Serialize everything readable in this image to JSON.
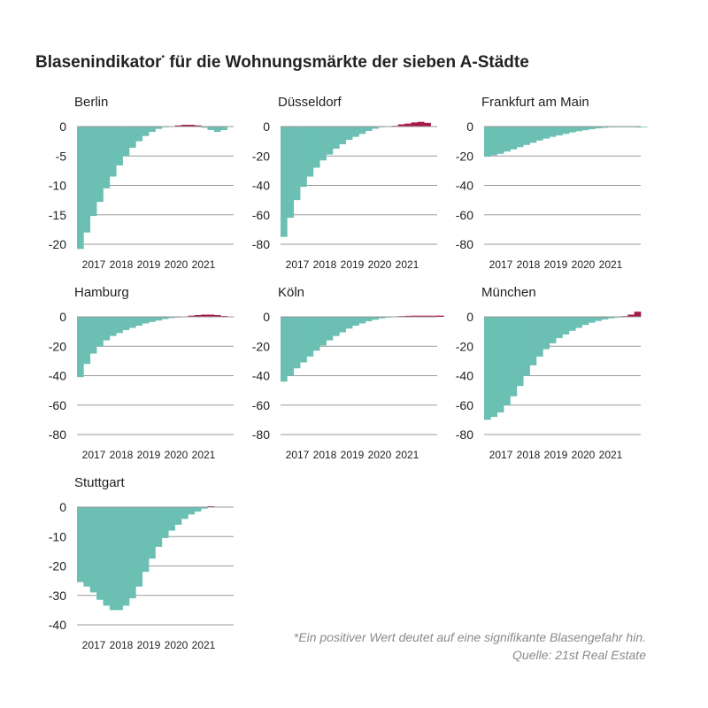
{
  "title": "Blasenindikator",
  "title_sup": "*",
  "title_rest": " für die Wohnungsmärkte der sieben A-Städte",
  "footnote": {
    "line1": "*Ein positiver Wert deutet auf eine signifikante Blasengefahr hin.",
    "line2": "Quelle: 21st Real Estate"
  },
  "colors": {
    "negative": "#6bbfb3",
    "positive": "#a8174a",
    "gridline": "#9a9a9a",
    "text": "#222222"
  },
  "chart_data": [
    {
      "type": "bar",
      "title": "Berlin",
      "x_tick_labels": [
        "2017",
        "2018",
        "2019",
        "2020",
        "2021"
      ],
      "yticks": [
        0,
        -5,
        -10,
        -15,
        -20
      ],
      "ylim": [
        -21,
        1
      ],
      "values": [
        -20.8,
        -18,
        -15.2,
        -12.8,
        -10.5,
        -8.5,
        -6.6,
        -5,
        -3.6,
        -2.5,
        -1.6,
        -0.9,
        -0.4,
        -0.1,
        0,
        0.2,
        0.3,
        0.3,
        0.2,
        -0.2,
        -0.6,
        -0.9,
        -0.6,
        0
      ]
    },
    {
      "type": "bar",
      "title": "Düsseldorf",
      "x_tick_labels": [
        "2017",
        "2018",
        "2019",
        "2020",
        "2021"
      ],
      "yticks": [
        0,
        -20,
        -40,
        -60,
        -80
      ],
      "ylim": [
        -82,
        5
      ],
      "values": [
        -75,
        -62,
        -50,
        -41,
        -34,
        -28,
        -23,
        -19,
        -15,
        -12,
        -9,
        -7,
        -5,
        -3,
        -1.5,
        -0.5,
        0,
        0.5,
        1.5,
        2,
        2.8,
        3.2,
        2.5
      ]
    },
    {
      "type": "bar",
      "title": "Frankfurt am Main",
      "x_tick_labels": [
        "2017",
        "2018",
        "2019",
        "2020",
        "2021"
      ],
      "yticks": [
        0,
        -20,
        -40,
        -60,
        -80
      ],
      "ylim": [
        -82,
        2
      ],
      "values": [
        -20.5,
        -19.5,
        -18.5,
        -17,
        -15.5,
        -14,
        -12.5,
        -11,
        -9.5,
        -8.2,
        -7,
        -6,
        -5,
        -4,
        -3.2,
        -2.5,
        -1.8,
        -1.2,
        -0.8,
        -0.5,
        -0.3,
        -0.2,
        -0.2,
        -0.6,
        -0.3
      ]
    },
    {
      "type": "bar",
      "title": "Hamburg",
      "x_tick_labels": [
        "2017",
        "2018",
        "2019",
        "2020",
        "2021"
      ],
      "yticks": [
        0,
        -20,
        -40,
        -60,
        -80
      ],
      "ylim": [
        -82,
        2
      ],
      "values": [
        -41,
        -32,
        -25,
        -20,
        -16,
        -13,
        -11,
        -9,
        -7.5,
        -6,
        -4.5,
        -3.5,
        -2.5,
        -1.5,
        -0.8,
        -0.3,
        0.3,
        0.8,
        1.2,
        1.5,
        1.5,
        1.2,
        0.6,
        0.2
      ]
    },
    {
      "type": "bar",
      "title": "Köln",
      "x_tick_labels": [
        "2017",
        "2018",
        "2019",
        "2020",
        "2021"
      ],
      "yticks": [
        0,
        -20,
        -40,
        -60,
        -80
      ],
      "ylim": [
        -82,
        2
      ],
      "values": [
        -44,
        -40,
        -35,
        -31,
        -27,
        -23,
        -19.5,
        -16,
        -13,
        -10.5,
        -8,
        -6,
        -4.5,
        -3,
        -2,
        -1,
        -0.3,
        0.2,
        0.5,
        0.7,
        0.8,
        0.8,
        0.8,
        0.8,
        0.8
      ]
    },
    {
      "type": "bar",
      "title": "München",
      "x_tick_labels": [
        "2017",
        "2018",
        "2019",
        "2020",
        "2021"
      ],
      "yticks": [
        0,
        -20,
        -40,
        -60,
        -80
      ],
      "ylim": [
        -82,
        6
      ],
      "values": [
        -70,
        -68,
        -65,
        -60,
        -54,
        -47,
        -40,
        -33,
        -27,
        -22,
        -18,
        -14.5,
        -12,
        -9.5,
        -7.5,
        -5.5,
        -4,
        -2.8,
        -1.8,
        -1,
        -0.3,
        0.5,
        1.5,
        3.5
      ]
    },
    {
      "type": "bar",
      "title": "Stuttgart",
      "x_tick_labels": [
        "2017",
        "2018",
        "2019",
        "2020",
        "2021"
      ],
      "yticks": [
        0,
        -10,
        -20,
        -30,
        -40
      ],
      "ylim": [
        -41,
        1
      ],
      "values": [
        -25.5,
        -27,
        -29,
        -31.5,
        -33.5,
        -35,
        -35,
        -33.5,
        -31,
        -27,
        -22,
        -17.5,
        -13.5,
        -10.5,
        -8,
        -6,
        -4,
        -2.5,
        -1.5,
        -0.5,
        0.3
      ]
    }
  ]
}
